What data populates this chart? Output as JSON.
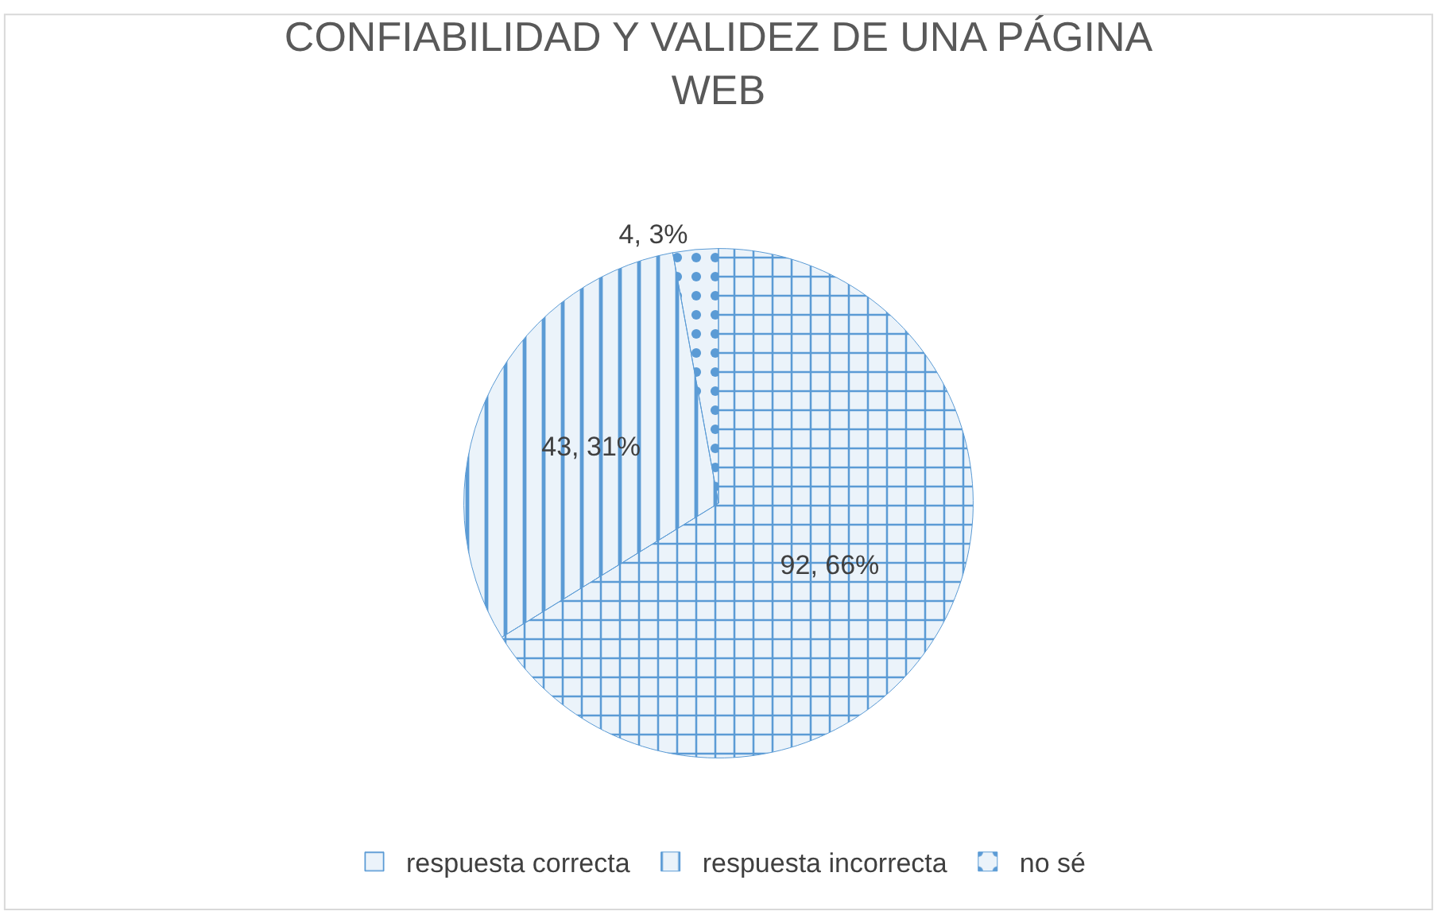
{
  "chart_data": {
    "type": "pie",
    "title": "CONFIABILIDAD Y VALIDEZ DE UNA PÁGINA WEB",
    "categories": [
      "respuesta correcta",
      "respuesta incorrecta",
      "no sé"
    ],
    "values": [
      92,
      43,
      4
    ],
    "colors": [
      "#5b9bd5",
      "#5b9bd5",
      "#5b9bd5"
    ],
    "value_labels": [
      "92, 66%",
      "43, 31%",
      "4, 3%"
    ],
    "legend": "bottom"
  }
}
